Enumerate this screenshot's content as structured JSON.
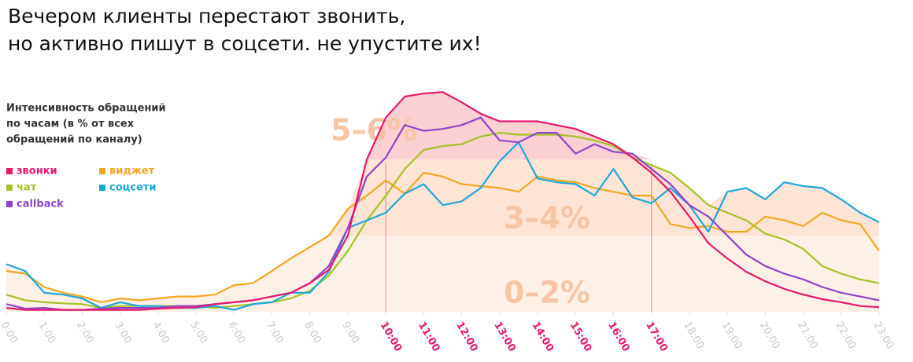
{
  "chart_data": {
    "type": "line",
    "title_lines": [
      "Вечером клиенты перестают звонить,",
      "но активно пишут в соцсети. не упустите их!"
    ],
    "legend_title_lines": [
      "Интенсивность обращений",
      "по часам (в % от всех",
      "обращений по каналу)"
    ],
    "x": [
      0,
      0.5,
      1,
      1.5,
      2,
      2.5,
      3,
      3.5,
      4,
      4.5,
      5,
      5.5,
      6,
      6.5,
      7,
      7.5,
      8,
      8.5,
      9,
      9.5,
      10,
      10.5,
      11,
      11.5,
      12,
      12.5,
      13,
      13.5,
      14,
      14.5,
      15,
      15.5,
      16,
      16.5,
      17,
      17.5,
      18,
      18.5,
      19,
      19.5,
      20,
      20.5,
      21,
      21.5,
      22,
      22.5,
      23
    ],
    "xlim": [
      0,
      23
    ],
    "xticks": [
      {
        "value": 0,
        "label": "0:00"
      },
      {
        "value": 1,
        "label": "1:00"
      },
      {
        "value": 2,
        "label": "2:00"
      },
      {
        "value": 3,
        "label": "3:00"
      },
      {
        "value": 4,
        "label": "4:00"
      },
      {
        "value": 5,
        "label": "5:00"
      },
      {
        "value": 6,
        "label": "6:00"
      },
      {
        "value": 7,
        "label": "7:00"
      },
      {
        "value": 8,
        "label": "8:00"
      },
      {
        "value": 9,
        "label": "9:00"
      },
      {
        "value": 10,
        "label": "10:00"
      },
      {
        "value": 11,
        "label": "11:00"
      },
      {
        "value": 12,
        "label": "12:00"
      },
      {
        "value": 13,
        "label": "13:00"
      },
      {
        "value": 14,
        "label": "14:00"
      },
      {
        "value": 15,
        "label": "15:00"
      },
      {
        "value": 16,
        "label": "16:00"
      },
      {
        "value": 17,
        "label": "17:00"
      },
      {
        "value": 18,
        "label": "18:00"
      },
      {
        "value": 19,
        "label": "19:00"
      },
      {
        "value": 20,
        "label": "20:00"
      },
      {
        "value": 21,
        "label": "21:00"
      },
      {
        "value": 22,
        "label": "22:00"
      },
      {
        "value": 23,
        "label": "23:00"
      }
    ],
    "highlight_xrange": [
      10,
      17
    ],
    "highlight_color": "#e6186f",
    "ylim": [
      0,
      6
    ],
    "bands": [
      {
        "label": "0–2%",
        "from": 0,
        "to": 2,
        "color": "#fdf0e6"
      },
      {
        "label": "3–4%",
        "from": 2,
        "to": 4,
        "color": "#fde4d4"
      },
      {
        "label": "5–6%",
        "from": 4,
        "to": 6,
        "color": "#fbd0d3"
      }
    ],
    "series": [
      {
        "name": "звонки",
        "color": "#e6186f",
        "values": [
          0.1,
          0.05,
          0.05,
          0.05,
          0.05,
          0.05,
          0.05,
          0.05,
          0.08,
          0.1,
          0.12,
          0.2,
          0.25,
          0.3,
          0.4,
          0.5,
          0.75,
          1.1,
          2.0,
          4.0,
          5.1,
          5.65,
          5.73,
          5.77,
          5.5,
          5.2,
          5.0,
          5.0,
          5.0,
          4.9,
          4.8,
          4.6,
          4.4,
          4.05,
          3.65,
          3.15,
          2.5,
          1.8,
          1.4,
          1.05,
          0.8,
          0.6,
          0.45,
          0.33,
          0.25,
          0.15,
          0.12
        ]
      },
      {
        "name": "виджет",
        "color": "#f5a623",
        "values": [
          1.07,
          1.0,
          0.65,
          0.5,
          0.4,
          0.25,
          0.35,
          0.3,
          0.35,
          0.4,
          0.4,
          0.45,
          0.7,
          0.75,
          1.07,
          1.4,
          1.7,
          2.0,
          2.7,
          3.05,
          3.45,
          3.1,
          3.65,
          3.55,
          3.35,
          3.3,
          3.25,
          3.15,
          3.55,
          3.45,
          3.4,
          3.25,
          3.15,
          3.05,
          3.05,
          2.3,
          2.2,
          2.25,
          2.1,
          2.1,
          2.5,
          2.4,
          2.25,
          2.6,
          2.4,
          2.3,
          1.6
        ]
      },
      {
        "name": "чат",
        "color": "#a3c325",
        "values": [
          0.45,
          0.3,
          0.25,
          0.22,
          0.2,
          0.1,
          0.15,
          0.15,
          0.15,
          0.15,
          0.15,
          0.1,
          0.15,
          0.2,
          0.25,
          0.35,
          0.55,
          0.95,
          1.6,
          2.4,
          3.05,
          3.75,
          4.25,
          4.35,
          4.4,
          4.6,
          4.7,
          4.65,
          4.65,
          4.65,
          4.6,
          4.5,
          4.35,
          4.05,
          3.85,
          3.65,
          3.25,
          2.8,
          2.6,
          2.4,
          2.05,
          1.9,
          1.65,
          1.2,
          1.0,
          0.85,
          0.75
        ]
      },
      {
        "name": "соцсети",
        "color": "#1da8dc",
        "values": [
          1.25,
          1.07,
          0.5,
          0.45,
          0.35,
          0.1,
          0.25,
          0.15,
          0.15,
          0.1,
          0.1,
          0.15,
          0.05,
          0.2,
          0.25,
          0.5,
          0.5,
          1.05,
          2.2,
          2.4,
          2.6,
          3.1,
          3.35,
          2.8,
          2.9,
          3.25,
          3.95,
          4.45,
          3.5,
          3.4,
          3.35,
          3.05,
          3.75,
          3.0,
          2.85,
          3.25,
          2.8,
          2.1,
          3.15,
          3.25,
          2.95,
          3.4,
          3.3,
          3.25,
          2.95,
          2.6,
          2.35
        ]
      },
      {
        "name": "callback",
        "color": "#8e44c8",
        "values": [
          0.2,
          0.08,
          0.1,
          0.05,
          0.05,
          0.08,
          0.1,
          0.1,
          0.1,
          0.15,
          0.15,
          0.2,
          0.25,
          0.3,
          0.4,
          0.5,
          0.75,
          1.2,
          2.2,
          3.55,
          4.05,
          4.9,
          4.75,
          4.8,
          4.9,
          5.1,
          4.5,
          4.45,
          4.7,
          4.7,
          4.15,
          4.4,
          4.2,
          4.15,
          3.75,
          3.35,
          2.8,
          2.5,
          2.0,
          1.5,
          1.2,
          1.0,
          0.85,
          0.65,
          0.5,
          0.4,
          0.3
        ]
      }
    ]
  }
}
